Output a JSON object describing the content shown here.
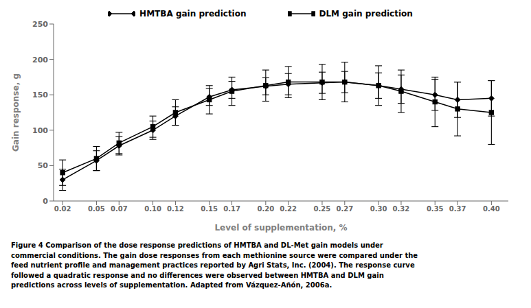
{
  "chart_data": {
    "type": "line",
    "xlabel": "Level of supplementation, %",
    "ylabel": "Gain response, g",
    "x": [
      0.02,
      0.05,
      0.07,
      0.1,
      0.12,
      0.15,
      0.17,
      0.2,
      0.22,
      0.25,
      0.27,
      0.3,
      0.32,
      0.35,
      0.37,
      0.4
    ],
    "series": [
      {
        "name": "HMTBA gain prediction",
        "color": "black",
        "marker": "diamond",
        "line_style": "solid",
        "values": [
          30,
          57,
          78,
          100,
          120,
          147,
          157,
          162,
          165,
          167,
          168,
          163,
          158,
          150,
          143,
          145
        ],
        "errors": [
          15,
          14,
          13,
          13,
          13,
          12,
          12,
          12,
          15,
          15,
          15,
          18,
          20,
          22,
          25,
          25
        ]
      },
      {
        "name": "DLM gain prediction",
        "color": "black",
        "marker": "square",
        "line_style": "solid",
        "values": [
          40,
          60,
          82,
          105,
          125,
          143,
          155,
          163,
          168,
          168,
          168,
          163,
          155,
          140,
          130,
          125
        ],
        "errors": [
          18,
          17,
          15,
          15,
          18,
          20,
          20,
          22,
          22,
          25,
          28,
          28,
          30,
          35,
          38,
          45
        ]
      }
    ],
    "xlim": [
      0.012,
      0.415
    ],
    "xticks": [
      0.02,
      0.05,
      0.07,
      {
        "value": 0.1,
        "label": "0.10"
      },
      0.12,
      0.15,
      0.17,
      {
        "value": 0.2,
        "label": "0.20"
      },
      0.22,
      0.25,
      0.27,
      {
        "value": 0.3,
        "label": "0.30"
      },
      0.32,
      0.35,
      0.37,
      {
        "value": 0.4,
        "label": "0.40"
      }
    ],
    "ylim": [
      0,
      250
    ],
    "yticks": [
      0,
      50,
      100,
      150,
      200,
      250
    ],
    "grid": false,
    "legend": "top",
    "annotations": [
      "Figure 4 Comparison of the dose response predictions of HMTBA and DL-Met gain models under\ncommercial conditions. The gain dose responses from each methionine source were compared under the\nfeed nutrient profile and management practices reported by Agri Stats, Inc. (2004). The response curve\nfollowed a quadratic response and no differences were observed between HMTBA and DLM gain\npredictions across levels of supplementation. Adapted from Vázquez-Añón, 2006a."
    ]
  }
}
